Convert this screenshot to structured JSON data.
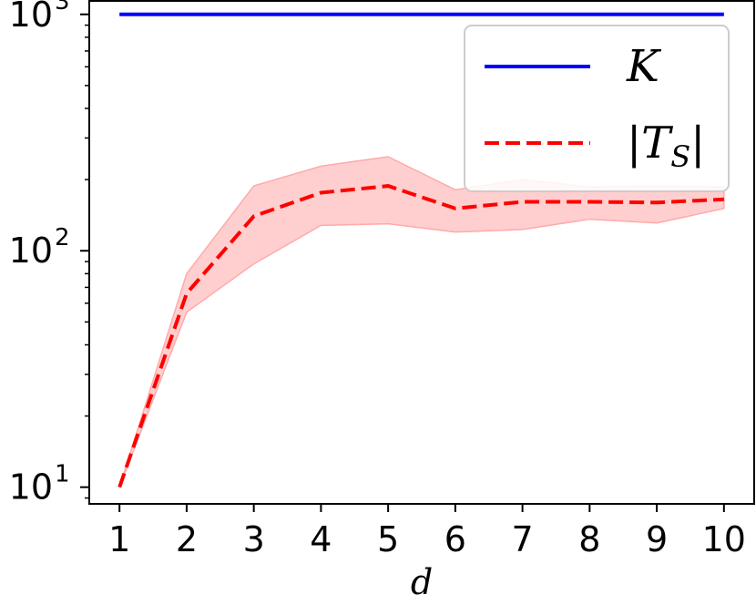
{
  "chart_data": {
    "type": "line",
    "xlabel": "d",
    "ylabel": "",
    "yscale": "log",
    "x": [
      1,
      2,
      3,
      4,
      5,
      6,
      7,
      8,
      9,
      10
    ],
    "xlim": [
      0.55,
      10.45
    ],
    "ylim": [
      8.5,
      1150
    ],
    "y_ticks": [
      {
        "value": 10,
        "base": "10",
        "exp": "1"
      },
      {
        "value": 100,
        "base": "10",
        "exp": "2"
      },
      {
        "value": 1000,
        "base": "10",
        "exp": "3"
      }
    ],
    "x_tick_labels": [
      "1",
      "2",
      "3",
      "4",
      "5",
      "6",
      "7",
      "8",
      "9",
      "10"
    ],
    "series": [
      {
        "name": "K",
        "color": "#0000ff",
        "style": "solid",
        "values": [
          1000,
          1000,
          1000,
          1000,
          1000,
          1000,
          1000,
          1000,
          1000,
          1000
        ]
      },
      {
        "name": "|T_S|",
        "color": "#ff0000",
        "style": "dashed",
        "values": [
          10,
          66,
          140,
          176,
          188,
          151,
          161,
          161,
          160,
          165
        ],
        "band_low": [
          10,
          55,
          88,
          128,
          130,
          120,
          123,
          136,
          131,
          151
        ],
        "band_high": [
          10,
          80,
          188,
          228,
          250,
          181,
          200,
          186,
          188,
          186
        ],
        "band_color": "#ffcccc"
      }
    ],
    "legend": {
      "position": "top-right",
      "entries": [
        {
          "label": "K",
          "sub": ""
        },
        {
          "label": "|T",
          "sub": "S",
          "suffix": "|"
        }
      ]
    }
  }
}
